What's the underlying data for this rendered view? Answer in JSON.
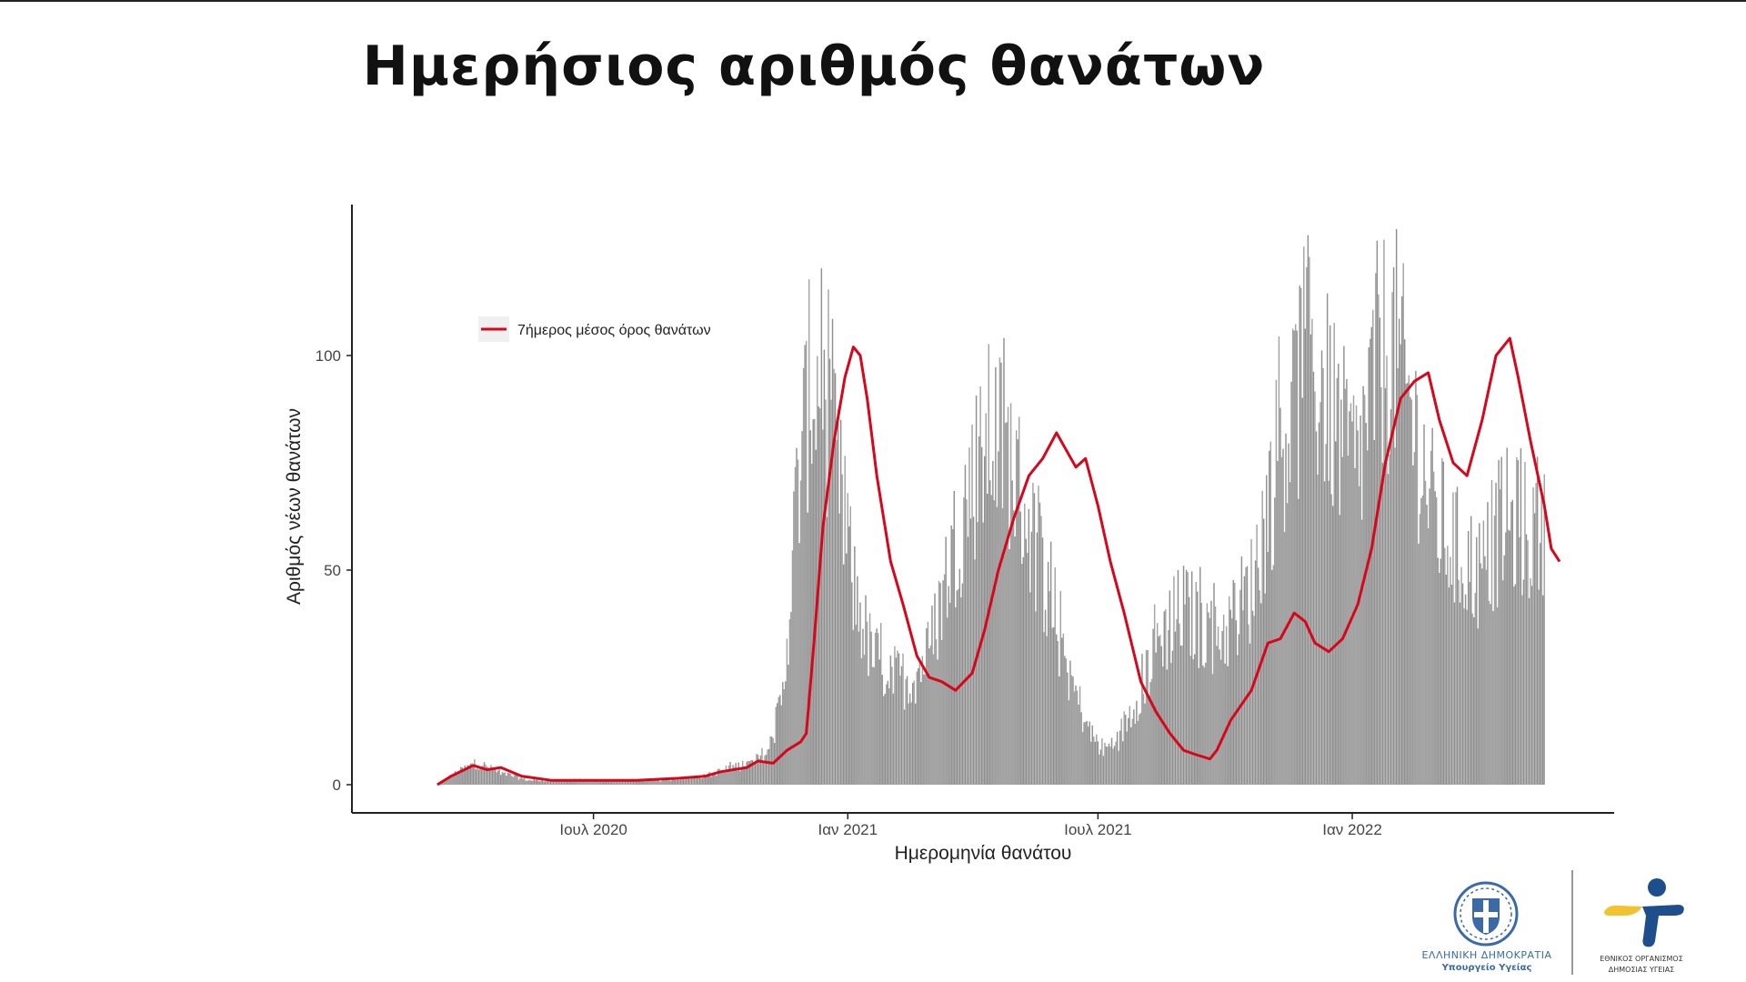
{
  "page": {
    "title": "Ημερήσιος αριθμός θανάτων"
  },
  "logos": {
    "ministry_line1": "ΕΛΛΗΝΙΚΗ ΔΗΜΟΚΡΑΤΙΑ",
    "ministry_line2": "Υπουργείο Υγείας",
    "eody_line1": "ΕΘΝΙΚΟΣ ΟΡΓΑΝΙΣΜΟΣ",
    "eody_line2": "ΔΗΜΟΣΙΑΣ ΥΓΕΙΑΣ",
    "seal_icon": "greek-coat-of-arms-icon",
    "eody_icon": "eody-logo-icon"
  },
  "chart_data": {
    "type": "bar",
    "xlabel": "Ημερομηνία θανάτου",
    "ylabel": "Αριθμός νέων θανάτων",
    "ylim": [
      0,
      135
    ],
    "x_range": [
      "2020-02-20",
      "2022-05-31"
    ],
    "y_ticks": [
      0,
      50,
      100
    ],
    "x_ticks": [
      {
        "date": "2020-07-01",
        "label": "Ιουλ 2020"
      },
      {
        "date": "2021-01-01",
        "label": "Ιαν 2021"
      },
      {
        "date": "2021-07-01",
        "label": "Ιουλ 2021"
      },
      {
        "date": "2022-01-01",
        "label": "Ιαν 2022"
      }
    ],
    "grid": false,
    "legend_position": "top-left",
    "colors": {
      "bars": "#9e9e9e",
      "line": "#d7061a",
      "axis": "#222222"
    },
    "series": [
      {
        "name": "",
        "kind": "bar",
        "description_of_values": "daily deaths",
        "anchors": [
          [
            "2020-03-10",
            0
          ],
          [
            "2020-03-25",
            3
          ],
          [
            "2020-04-08",
            5
          ],
          [
            "2020-04-22",
            3
          ],
          [
            "2020-05-15",
            1
          ],
          [
            "2020-06-15",
            1
          ],
          [
            "2020-07-15",
            1
          ],
          [
            "2020-08-20",
            1
          ],
          [
            "2020-09-20",
            2
          ],
          [
            "2020-10-10",
            4
          ],
          [
            "2020-10-25",
            5
          ],
          [
            "2020-11-05",
            8
          ],
          [
            "2020-11-15",
            20
          ],
          [
            "2020-11-25",
            65
          ],
          [
            "2020-12-05",
            92
          ],
          [
            "2020-12-15",
            90
          ],
          [
            "2020-12-25",
            70
          ],
          [
            "2021-01-05",
            45
          ],
          [
            "2021-01-18",
            30
          ],
          [
            "2021-02-01",
            25
          ],
          [
            "2021-02-15",
            24
          ],
          [
            "2021-03-01",
            30
          ],
          [
            "2021-03-15",
            50
          ],
          [
            "2021-04-01",
            70
          ],
          [
            "2021-04-15",
            80
          ],
          [
            "2021-04-28",
            75
          ],
          [
            "2021-05-10",
            62
          ],
          [
            "2021-05-25",
            45
          ],
          [
            "2021-06-10",
            25
          ],
          [
            "2021-06-25",
            12
          ],
          [
            "2021-07-05",
            8
          ],
          [
            "2021-07-15",
            10
          ],
          [
            "2021-08-01",
            22
          ],
          [
            "2021-08-15",
            34
          ],
          [
            "2021-09-01",
            40
          ],
          [
            "2021-09-15",
            36
          ],
          [
            "2021-10-01",
            35
          ],
          [
            "2021-10-20",
            45
          ],
          [
            "2021-11-10",
            78
          ],
          [
            "2021-11-25",
            92
          ],
          [
            "2021-12-10",
            92
          ],
          [
            "2021-12-25",
            78
          ],
          [
            "2022-01-05",
            72
          ],
          [
            "2022-01-20",
            98
          ],
          [
            "2022-02-01",
            100
          ],
          [
            "2022-02-15",
            82
          ],
          [
            "2022-03-01",
            62
          ],
          [
            "2022-03-20",
            52
          ],
          [
            "2022-04-05",
            48
          ],
          [
            "2022-04-20",
            60
          ],
          [
            "2022-05-05",
            58
          ],
          [
            "2022-05-20",
            56
          ]
        ]
      },
      {
        "name": "7ήμερος μέσος όρος θανάτων",
        "kind": "line",
        "anchors": [
          [
            "2020-03-10",
            0
          ],
          [
            "2020-03-20",
            2
          ],
          [
            "2020-04-05",
            4.5
          ],
          [
            "2020-04-15",
            3.5
          ],
          [
            "2020-04-25",
            4
          ],
          [
            "2020-05-10",
            2
          ],
          [
            "2020-06-01",
            1
          ],
          [
            "2020-07-01",
            1
          ],
          [
            "2020-08-01",
            1
          ],
          [
            "2020-09-01",
            1.5
          ],
          [
            "2020-09-20",
            2
          ],
          [
            "2020-10-01",
            3
          ],
          [
            "2020-10-20",
            4
          ],
          [
            "2020-10-28",
            5.5
          ],
          [
            "2020-11-08",
            5
          ],
          [
            "2020-11-18",
            8
          ],
          [
            "2020-11-28",
            10
          ],
          [
            "2020-12-02",
            12
          ],
          [
            "2020-12-08",
            35
          ],
          [
            "2020-12-14",
            60
          ],
          [
            "2020-12-22",
            80
          ],
          [
            "2020-12-30",
            95
          ],
          [
            "2021-01-05",
            102
          ],
          [
            "2021-01-10",
            100
          ],
          [
            "2021-01-15",
            90
          ],
          [
            "2021-01-22",
            72
          ],
          [
            "2021-02-01",
            52
          ],
          [
            "2021-02-10",
            42
          ],
          [
            "2021-02-20",
            30
          ],
          [
            "2021-03-01",
            25
          ],
          [
            "2021-03-10",
            24
          ],
          [
            "2021-03-20",
            22
          ],
          [
            "2021-04-01",
            26
          ],
          [
            "2021-04-10",
            36
          ],
          [
            "2021-04-20",
            50
          ],
          [
            "2021-05-01",
            62
          ],
          [
            "2021-05-12",
            72
          ],
          [
            "2021-05-22",
            76
          ],
          [
            "2021-06-01",
            82
          ],
          [
            "2021-06-08",
            78
          ],
          [
            "2021-06-15",
            74
          ],
          [
            "2021-06-22",
            76
          ],
          [
            "2021-07-01",
            65
          ],
          [
            "2021-07-10",
            52
          ],
          [
            "2021-07-20",
            40
          ],
          [
            "2021-08-01",
            24
          ],
          [
            "2021-08-12",
            17
          ],
          [
            "2021-08-22",
            12
          ],
          [
            "2021-09-01",
            8
          ],
          [
            "2021-09-10",
            7
          ],
          [
            "2021-09-20",
            6
          ],
          [
            "2021-09-25",
            8
          ],
          [
            "2021-10-05",
            15
          ],
          [
            "2021-10-20",
            22
          ],
          [
            "2021-11-01",
            33
          ],
          [
            "2021-11-10",
            34
          ],
          [
            "2021-11-20",
            40
          ],
          [
            "2021-11-28",
            38
          ],
          [
            "2021-12-05",
            33
          ],
          [
            "2021-12-15",
            31
          ],
          [
            "2021-12-25",
            34
          ],
          [
            "2022-01-05",
            42
          ],
          [
            "2022-01-15",
            55
          ],
          [
            "2022-01-25",
            75
          ],
          [
            "2022-02-05",
            90
          ],
          [
            "2022-02-15",
            94
          ],
          [
            "2022-02-25",
            96
          ],
          [
            "2022-03-05",
            85
          ],
          [
            "2022-03-15",
            75
          ],
          [
            "2022-03-25",
            72
          ],
          [
            "2022-04-05",
            85
          ],
          [
            "2022-04-15",
            100
          ],
          [
            "2022-04-25",
            104
          ],
          [
            "2022-05-01",
            95
          ],
          [
            "2022-05-10",
            80
          ],
          [
            "2022-05-20",
            65
          ],
          [
            "2022-05-25",
            55
          ],
          [
            "2022-05-31",
            52
          ]
        ]
      }
    ]
  }
}
